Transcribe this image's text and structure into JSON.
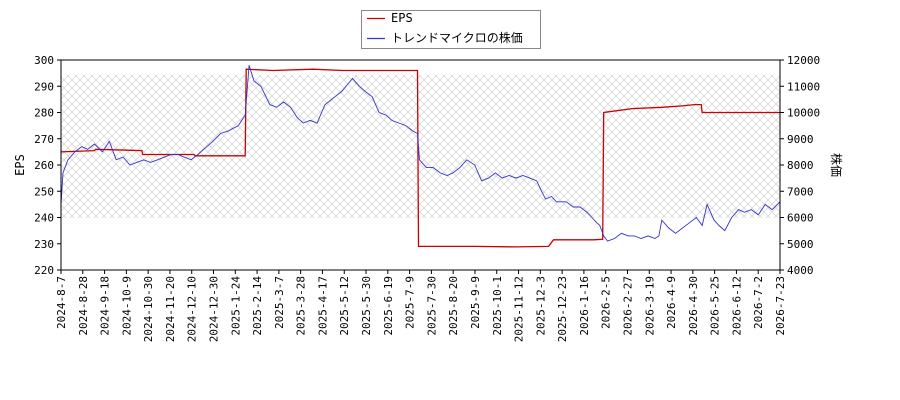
{
  "chart_data": {
    "type": "line",
    "left_axis": {
      "label": "EPS",
      "ylim": [
        220,
        300
      ],
      "ticks": [
        220,
        230,
        240,
        250,
        260,
        270,
        280,
        290,
        300
      ]
    },
    "right_axis": {
      "label": "株価",
      "ylim": [
        4000,
        12000
      ],
      "ticks": [
        4000,
        5000,
        6000,
        7000,
        8000,
        9000,
        10000,
        11000,
        12000
      ]
    },
    "x_range": [
      "2024-08-07",
      "2026-08-07"
    ],
    "x_ticks": [
      "2024-8-7",
      "2024-8-28",
      "2024-9-18",
      "2024-10-9",
      "2024-10-30",
      "2024-11-20",
      "2024-12-10",
      "2024-12-30",
      "2025-1-24",
      "2025-2-14",
      "2025-3-7",
      "2025-3-28",
      "2025-4-17",
      "2025-5-12",
      "2025-5-30",
      "2025-6-19",
      "2025-7-9",
      "2025-7-30",
      "2025-8-20",
      "2025-9-9",
      "2025-10-1",
      "2025-11-12",
      "2025-12-3",
      "2025-12-23",
      "2026-1-16",
      "2026-2-5",
      "2026-2-27",
      "2026-3-19",
      "2026-4-9",
      "2026-4-30",
      "2026-5-25",
      "2026-6-12",
      "2026-7-2",
      "2026-7-23"
    ],
    "legend": {
      "position": "top-center",
      "entries": [
        "EPS",
        "トレンドマイクロの株価"
      ]
    },
    "grid": true,
    "series": [
      {
        "name": "EPS",
        "axis": "left",
        "color": "#cc0000",
        "points": [
          [
            "2024-08-07",
            265
          ],
          [
            "2024-09-10",
            265.5
          ],
          [
            "2024-09-11",
            266
          ],
          [
            "2024-10-28",
            265.5
          ],
          [
            "2024-10-29",
            264
          ],
          [
            "2024-12-20",
            264
          ],
          [
            "2024-12-21",
            263.5
          ],
          [
            "2025-02-10",
            263.5
          ],
          [
            "2025-02-11",
            296.5
          ],
          [
            "2025-03-10",
            296
          ],
          [
            "2025-04-20",
            296.5
          ],
          [
            "2025-05-20",
            296
          ],
          [
            "2025-07-10",
            296
          ],
          [
            "2025-08-04",
            296
          ],
          [
            "2025-08-05",
            229
          ],
          [
            "2025-10-01",
            229
          ],
          [
            "2025-11-12",
            228.8
          ],
          [
            "2025-12-15",
            229
          ],
          [
            "2025-12-20",
            231.5
          ],
          [
            "2026-01-30",
            231.5
          ],
          [
            "2026-02-08",
            231.7
          ],
          [
            "2026-02-09",
            280
          ],
          [
            "2026-03-10",
            281.5
          ],
          [
            "2026-04-09",
            282
          ],
          [
            "2026-04-30",
            282.5
          ],
          [
            "2026-05-12",
            283
          ],
          [
            "2026-05-19",
            283
          ],
          [
            "2026-05-20",
            280
          ],
          [
            "2026-07-23",
            280
          ],
          [
            "2026-08-07",
            280
          ]
        ]
      },
      {
        "name": "トレンドマイクロの株価",
        "axis": "right",
        "color": "#3333cc",
        "points": [
          [
            "2024-08-07",
            6500
          ],
          [
            "2024-08-09",
            7700
          ],
          [
            "2024-08-14",
            8200
          ],
          [
            "2024-08-21",
            8500
          ],
          [
            "2024-08-28",
            8700
          ],
          [
            "2024-09-03",
            8600
          ],
          [
            "2024-09-10",
            8800
          ],
          [
            "2024-09-18",
            8500
          ],
          [
            "2024-09-25",
            8900
          ],
          [
            "2024-10-02",
            8200
          ],
          [
            "2024-10-09",
            8300
          ],
          [
            "2024-10-16",
            8000
          ],
          [
            "2024-10-23",
            8100
          ],
          [
            "2024-10-30",
            8200
          ],
          [
            "2024-11-06",
            8100
          ],
          [
            "2024-11-13",
            8200
          ],
          [
            "2024-11-20",
            8300
          ],
          [
            "2024-11-27",
            8400
          ],
          [
            "2024-12-04",
            8400
          ],
          [
            "2024-12-10",
            8300
          ],
          [
            "2024-12-17",
            8200
          ],
          [
            "2024-12-24",
            8400
          ],
          [
            "2024-12-30",
            8600
          ],
          [
            "2025-01-08",
            8900
          ],
          [
            "2025-01-16",
            9200
          ],
          [
            "2025-01-24",
            9300
          ],
          [
            "2025-02-03",
            9500
          ],
          [
            "2025-02-10",
            9900
          ],
          [
            "2025-02-14",
            11800
          ],
          [
            "2025-02-19",
            11200
          ],
          [
            "2025-02-26",
            11000
          ],
          [
            "2025-03-07",
            10300
          ],
          [
            "2025-03-14",
            10200
          ],
          [
            "2025-03-21",
            10400
          ],
          [
            "2025-03-28",
            10200
          ],
          [
            "2025-04-04",
            9800
          ],
          [
            "2025-04-10",
            9600
          ],
          [
            "2025-04-17",
            9700
          ],
          [
            "2025-04-24",
            9600
          ],
          [
            "2025-05-02",
            10300
          ],
          [
            "2025-05-12",
            10600
          ],
          [
            "2025-05-19",
            10800
          ],
          [
            "2025-05-30",
            11300
          ],
          [
            "2025-06-06",
            11000
          ],
          [
            "2025-06-12",
            10800
          ],
          [
            "2025-06-19",
            10600
          ],
          [
            "2025-06-26",
            10000
          ],
          [
            "2025-07-03",
            9900
          ],
          [
            "2025-07-09",
            9700
          ],
          [
            "2025-07-16",
            9600
          ],
          [
            "2025-07-23",
            9500
          ],
          [
            "2025-07-30",
            9300
          ],
          [
            "2025-08-04",
            9200
          ],
          [
            "2025-08-06",
            8200
          ],
          [
            "2025-08-13",
            7900
          ],
          [
            "2025-08-20",
            7900
          ],
          [
            "2025-08-27",
            7700
          ],
          [
            "2025-09-03",
            7600
          ],
          [
            "2025-09-09",
            7700
          ],
          [
            "2025-09-16",
            7900
          ],
          [
            "2025-09-23",
            8200
          ],
          [
            "2025-10-01",
            8000
          ],
          [
            "2025-10-08",
            7400
          ],
          [
            "2025-10-15",
            7500
          ],
          [
            "2025-10-22",
            7700
          ],
          [
            "2025-10-29",
            7500
          ],
          [
            "2025-11-05",
            7600
          ],
          [
            "2025-11-12",
            7500
          ],
          [
            "2025-11-19",
            7600
          ],
          [
            "2025-11-26",
            7500
          ],
          [
            "2025-12-03",
            7400
          ],
          [
            "2025-12-08",
            7000
          ],
          [
            "2025-12-12",
            6700
          ],
          [
            "2025-12-18",
            6800
          ],
          [
            "2025-12-23",
            6600
          ],
          [
            "2026-01-02",
            6600
          ],
          [
            "2026-01-09",
            6400
          ],
          [
            "2026-01-16",
            6400
          ],
          [
            "2026-01-23",
            6200
          ],
          [
            "2026-01-28",
            6000
          ],
          [
            "2026-02-02",
            5800
          ],
          [
            "2026-02-05",
            5700
          ],
          [
            "2026-02-09",
            5300
          ],
          [
            "2026-02-13",
            5100
          ],
          [
            "2026-02-20",
            5200
          ],
          [
            "2026-02-27",
            5400
          ],
          [
            "2026-03-06",
            5300
          ],
          [
            "2026-03-12",
            5300
          ],
          [
            "2026-03-19",
            5200
          ],
          [
            "2026-03-26",
            5300
          ],
          [
            "2026-04-02",
            5200
          ],
          [
            "2026-04-06",
            5300
          ],
          [
            "2026-04-09",
            5900
          ],
          [
            "2026-04-16",
            5600
          ],
          [
            "2026-04-23",
            5400
          ],
          [
            "2026-04-30",
            5600
          ],
          [
            "2026-05-07",
            5800
          ],
          [
            "2026-05-14",
            6000
          ],
          [
            "2026-05-20",
            5700
          ],
          [
            "2026-05-25",
            6500
          ],
          [
            "2026-06-01",
            5900
          ],
          [
            "2026-06-06",
            5700
          ],
          [
            "2026-06-12",
            5500
          ],
          [
            "2026-06-19",
            6000
          ],
          [
            "2026-06-26",
            6300
          ],
          [
            "2026-07-02",
            6200
          ],
          [
            "2026-07-09",
            6300
          ],
          [
            "2026-07-16",
            6100
          ],
          [
            "2026-07-23",
            6500
          ],
          [
            "2026-07-30",
            6300
          ],
          [
            "2026-08-07",
            6600
          ]
        ]
      }
    ]
  }
}
